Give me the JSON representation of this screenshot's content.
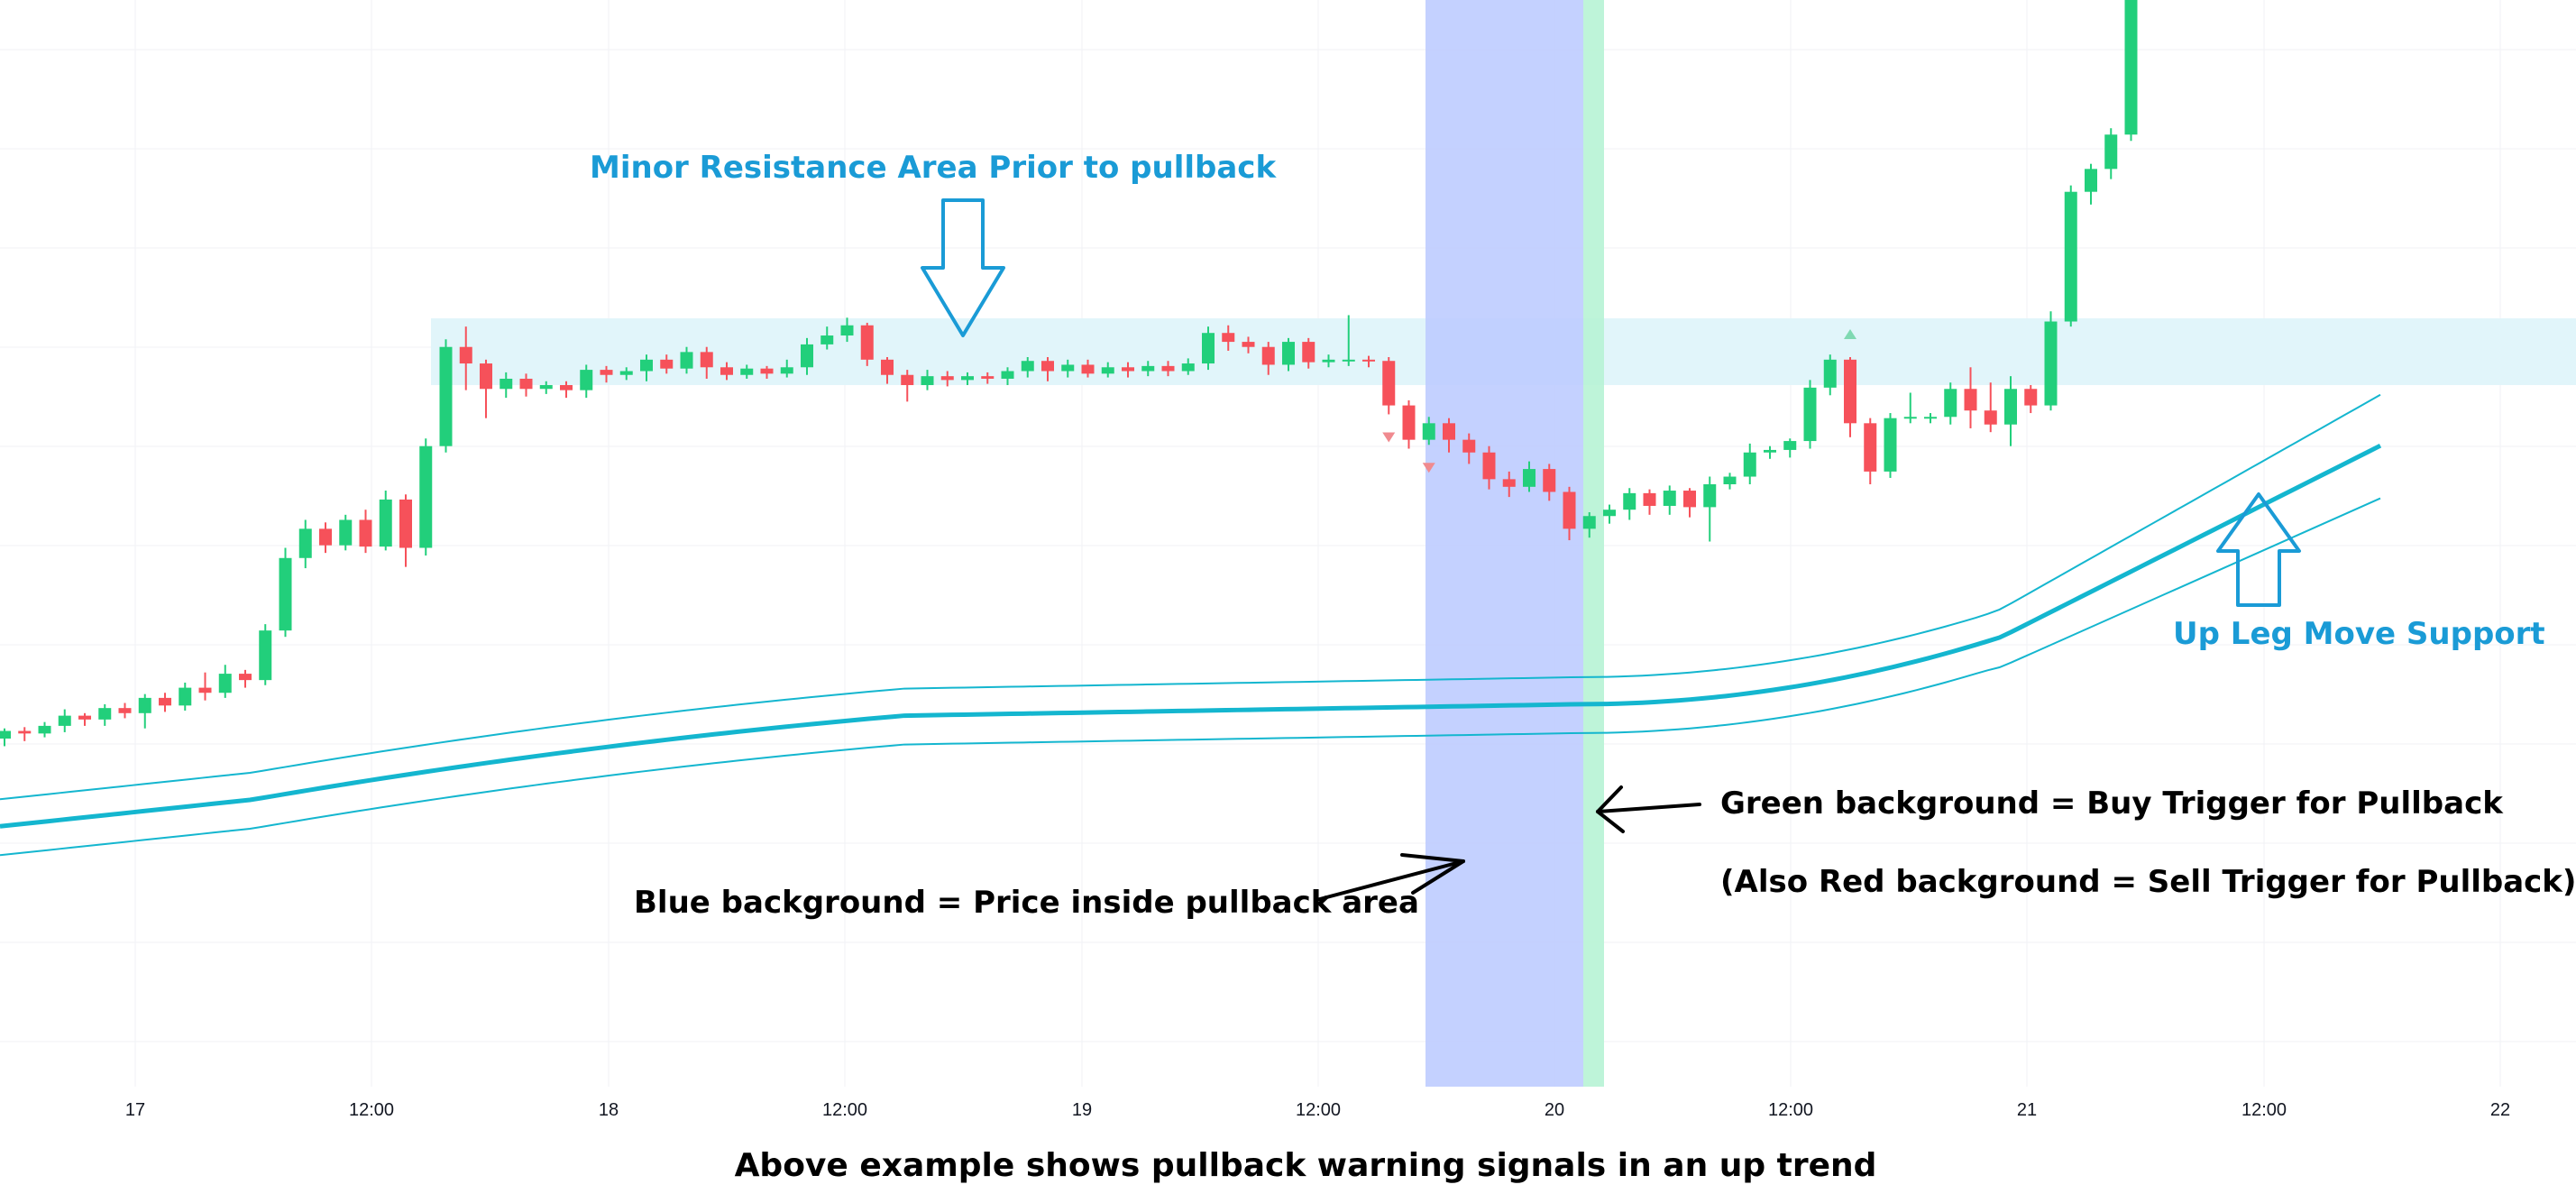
{
  "chart_data": {
    "type": "candlestick",
    "xlabel": "",
    "ylabel": "",
    "x_ticks": [
      "17",
      "12:00",
      "18",
      "12:00",
      "19",
      "12:00",
      "20",
      "12:00",
      "21",
      "12:00",
      "22"
    ],
    "grid": true,
    "colors": {
      "up": "#22cf7b",
      "down": "#f6515a",
      "ema": "#14b6cf",
      "resistance_zone": "#dff4fa",
      "pullback_background": "#bccbff",
      "buy_trigger_background": "#b7f3d5",
      "arrow_outline": "#1a9bd6",
      "label_blue": "#1a9bd6",
      "label_dark": "#000000"
    },
    "annotations": {
      "resistance_title": "Minor Resistance Area Prior to pullback",
      "support_title": "Up Leg Move Support",
      "green_note": "Green background = Buy Trigger for Pullback",
      "red_note": "(Also Red background = Sell Trigger for Pullback)",
      "blue_note": "Blue background = Price inside pullback area",
      "caption": "Above example shows pullback warning signals in an up trend"
    },
    "candles": [
      [
        100,
        106,
        96,
        108,
        94
      ],
      [
        106,
        104,
        101,
        109,
        98
      ],
      [
        104,
        110,
        103,
        113,
        101
      ],
      [
        110,
        118,
        108,
        123,
        105
      ],
      [
        118,
        115,
        113,
        120,
        110
      ],
      [
        115,
        124,
        113,
        127,
        110
      ],
      [
        124,
        120,
        118,
        128,
        116
      ],
      [
        120,
        132,
        118,
        135,
        108
      ],
      [
        132,
        126,
        124,
        136,
        121
      ],
      [
        126,
        140,
        124,
        144,
        122
      ],
      [
        140,
        136,
        133,
        152,
        130
      ],
      [
        136,
        151,
        134,
        158,
        132
      ],
      [
        151,
        146,
        143,
        154,
        140
      ],
      [
        146,
        185,
        144,
        190,
        142
      ],
      [
        185,
        242,
        182,
        250,
        180
      ],
      [
        242,
        265,
        238,
        272,
        234
      ],
      [
        265,
        252,
        249,
        270,
        246
      ],
      [
        252,
        272,
        250,
        276,
        248
      ],
      [
        272,
        251,
        249,
        280,
        246
      ],
      [
        251,
        288,
        250,
        295,
        248
      ],
      [
        288,
        250,
        240,
        292,
        235
      ],
      [
        250,
        330,
        248,
        336,
        244
      ],
      [
        330,
        408,
        327,
        414,
        325
      ],
      [
        408,
        395,
        376,
        424,
        374
      ],
      [
        395,
        375,
        370,
        398,
        352
      ],
      [
        375,
        383,
        373,
        388,
        368
      ],
      [
        383,
        375,
        371,
        387,
        369
      ],
      [
        375,
        378,
        373,
        381,
        371
      ],
      [
        378,
        374,
        370,
        381,
        368
      ],
      [
        374,
        390,
        372,
        394,
        368
      ],
      [
        390,
        386,
        383,
        393,
        380
      ],
      [
        386,
        389,
        384,
        392,
        382
      ],
      [
        389,
        398,
        385,
        402,
        381
      ],
      [
        398,
        391,
        389,
        402,
        387
      ],
      [
        391,
        404,
        389,
        408,
        387
      ],
      [
        404,
        392,
        390,
        408,
        383
      ],
      [
        392,
        386,
        385,
        396,
        382
      ],
      [
        386,
        391,
        384,
        394,
        383
      ],
      [
        391,
        387,
        385,
        393,
        383
      ],
      [
        387,
        392,
        386,
        398,
        384
      ],
      [
        392,
        410,
        389,
        415,
        386
      ],
      [
        410,
        417,
        409,
        424,
        406
      ],
      [
        417,
        425,
        414,
        431,
        412
      ],
      [
        425,
        398,
        394,
        427,
        393
      ],
      [
        398,
        386,
        382,
        400,
        379
      ],
      [
        386,
        378,
        375,
        390,
        365
      ],
      [
        378,
        385,
        376,
        390,
        374
      ],
      [
        385,
        382,
        380,
        389,
        377
      ],
      [
        382,
        385,
        380,
        388,
        378
      ],
      [
        385,
        383,
        381,
        388,
        379
      ],
      [
        383,
        389,
        380,
        392,
        378
      ],
      [
        389,
        397,
        387,
        400,
        384
      ],
      [
        397,
        389,
        384,
        400,
        381
      ],
      [
        389,
        394,
        386,
        398,
        384
      ],
      [
        394,
        387,
        385,
        398,
        384
      ],
      [
        387,
        392,
        386,
        396,
        384
      ],
      [
        392,
        389,
        386,
        396,
        384
      ],
      [
        389,
        393,
        387,
        397,
        385
      ],
      [
        393,
        389,
        386,
        397,
        385
      ],
      [
        389,
        395,
        387,
        399,
        386
      ],
      [
        395,
        419,
        393,
        424,
        390
      ],
      [
        419,
        412,
        408,
        425,
        405
      ],
      [
        412,
        408,
        405,
        416,
        403
      ],
      [
        408,
        394,
        390,
        412,
        386
      ],
      [
        394,
        412,
        392,
        415,
        389
      ],
      [
        412,
        396,
        393,
        415,
        391
      ],
      [
        396,
        398,
        394,
        402,
        392
      ],
      [
        398,
        398,
        395,
        433,
        393
      ],
      [
        398,
        397,
        394,
        401,
        392
      ],
      [
        397,
        362,
        358,
        400,
        355
      ],
      [
        362,
        335,
        330,
        366,
        328
      ],
      [
        335,
        348,
        333,
        353,
        331
      ],
      [
        348,
        335,
        330,
        352,
        325
      ],
      [
        335,
        325,
        320,
        340,
        316
      ],
      [
        325,
        304,
        300,
        330,
        296
      ],
      [
        304,
        298,
        295,
        310,
        290
      ],
      [
        298,
        312,
        296,
        318,
        294
      ],
      [
        312,
        294,
        290,
        316,
        287
      ],
      [
        294,
        265,
        260,
        298,
        256
      ],
      [
        265,
        275,
        262,
        278,
        258
      ],
      [
        275,
        280,
        272,
        284,
        269
      ],
      [
        280,
        293,
        276,
        297,
        272
      ],
      [
        293,
        283,
        278,
        296,
        276
      ],
      [
        283,
        295,
        280,
        299,
        276
      ],
      [
        295,
        282,
        278,
        297,
        274
      ],
      [
        282,
        300,
        280,
        306,
        255
      ],
      [
        300,
        306,
        298,
        309,
        296
      ],
      [
        306,
        325,
        303,
        332,
        300
      ],
      [
        325,
        327,
        322,
        330,
        320
      ],
      [
        327,
        334,
        324,
        336,
        321
      ],
      [
        334,
        376,
        331,
        382,
        328
      ],
      [
        376,
        398,
        373,
        402,
        370
      ],
      [
        398,
        348,
        340,
        400,
        337
      ],
      [
        348,
        310,
        305,
        352,
        300
      ],
      [
        310,
        352,
        307,
        356,
        305
      ],
      [
        352,
        353,
        350,
        372,
        348
      ],
      [
        353,
        353,
        350,
        356,
        348
      ],
      [
        353,
        375,
        350,
        380,
        347
      ],
      [
        375,
        358,
        355,
        392,
        344
      ],
      [
        358,
        347,
        343,
        380,
        341
      ],
      [
        347,
        375,
        345,
        385,
        330
      ],
      [
        375,
        362,
        358,
        378,
        356
      ],
      [
        362,
        428,
        360,
        436,
        358
      ],
      [
        428,
        530,
        426,
        535,
        424
      ],
      [
        530,
        548,
        526,
        552,
        520
      ],
      [
        548,
        575,
        544,
        580,
        540
      ],
      [
        575,
        700,
        572,
        710,
        570
      ]
    ],
    "signal_marks": [
      {
        "candle": 69,
        "type": "down",
        "offset": 60
      },
      {
        "candle": 71,
        "type": "down",
        "offset": 60
      },
      {
        "candle": 92,
        "type": "up",
        "offset": -40
      }
    ]
  }
}
